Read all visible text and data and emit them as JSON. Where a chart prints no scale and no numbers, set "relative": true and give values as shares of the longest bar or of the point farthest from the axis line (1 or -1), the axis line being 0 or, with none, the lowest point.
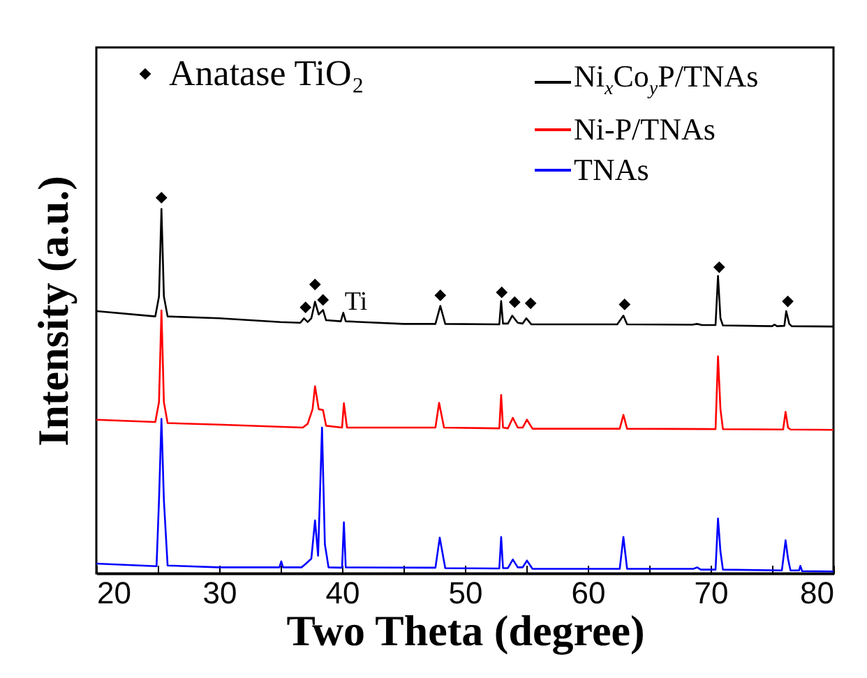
{
  "chart_data": {
    "type": "line",
    "xlabel": "Two Theta (degree)",
    "ylabel": "Intensity (a.u.)",
    "relative": true,
    "legend": "top right",
    "xlim": [
      20,
      80
    ],
    "xticks": [
      20,
      {
        "value": 25,
        "label": null
      },
      30,
      {
        "value": 35,
        "label": null
      },
      40,
      {
        "value": 45,
        "label": null
      },
      50,
      {
        "value": 55,
        "label": null
      },
      60,
      {
        "value": 65,
        "label": null
      },
      70,
      {
        "value": 75,
        "label": null
      },
      80
    ],
    "annotations": [
      {
        "text": "Ti",
        "x": 40.1,
        "y": 0.694
      }
    ],
    "series": [
      {
        "name": "Ni$_{x}$Co$_{y}$P/TNAs",
        "color": "#000000",
        "x": [
          20,
          24.8,
          25.1,
          25.3,
          25.5,
          25.8,
          30,
          35,
          36.6,
          36.9,
          37.2,
          37.5,
          37.8,
          38.1,
          38.45,
          38.7,
          39.9,
          40.1,
          40.3,
          45,
          47.6,
          48,
          48.4,
          52.8,
          52.95,
          53.1,
          53.5,
          53.85,
          54.3,
          54.7,
          55,
          55.4,
          62.4,
          62.9,
          63.2,
          68.5,
          68.9,
          69.3,
          70.4,
          70.6,
          70.8,
          71,
          75,
          75.2,
          75.4,
          76,
          76.15,
          76.4,
          76.6,
          80
        ],
        "values": [
          0.698,
          0.684,
          0.737,
          0.97,
          0.737,
          0.684,
          0.679,
          0.669,
          0.667,
          0.679,
          0.669,
          0.679,
          0.723,
          0.689,
          0.701,
          0.674,
          0.671,
          0.694,
          0.671,
          0.664,
          0.664,
          0.712,
          0.664,
          0.663,
          0.725,
          0.665,
          0.665,
          0.686,
          0.667,
          0.665,
          0.679,
          0.663,
          0.663,
          0.686,
          0.663,
          0.662,
          0.664,
          0.661,
          0.661,
          0.792,
          0.679,
          0.66,
          0.658,
          0.662,
          0.658,
          0.659,
          0.698,
          0.664,
          0.658,
          0.657
        ]
      },
      {
        "name": "Ni-P/TNAs",
        "color": "#ff0000",
        "x": [
          20,
          24.8,
          25.1,
          25.3,
          25.5,
          25.8,
          30,
          36.8,
          37.2,
          37.6,
          37.8,
          38.1,
          38.45,
          38.7,
          40,
          40.15,
          40.4,
          47.6,
          47.9,
          48.3,
          52.8,
          52.95,
          53.1,
          53.5,
          53.9,
          54.3,
          54.7,
          55.05,
          55.5,
          62.6,
          62.9,
          63.2,
          70.4,
          70.6,
          70.8,
          71,
          75.9,
          76.1,
          76.3,
          76.5,
          80
        ],
        "values": [
          0.409,
          0.403,
          0.456,
          0.7,
          0.456,
          0.4,
          0.396,
          0.388,
          0.398,
          0.437,
          0.498,
          0.437,
          0.435,
          0.393,
          0.388,
          0.453,
          0.388,
          0.388,
          0.454,
          0.388,
          0.386,
          0.475,
          0.388,
          0.386,
          0.414,
          0.388,
          0.388,
          0.409,
          0.385,
          0.385,
          0.422,
          0.385,
          0.384,
          0.578,
          0.437,
          0.384,
          0.383,
          0.43,
          0.388,
          0.383,
          0.382
        ]
      },
      {
        "name": "TNAs",
        "color": "#0000ff",
        "x": [
          20,
          24.9,
          25.1,
          25.3,
          25.5,
          25.8,
          30,
          34.9,
          35.05,
          35.2,
          36.7,
          37,
          37.5,
          37.8,
          38.05,
          38.37,
          38.6,
          38.9,
          40,
          40.15,
          40.3,
          47.6,
          47.95,
          48.4,
          52.8,
          52.95,
          53.1,
          53.5,
          53.9,
          54.3,
          54.7,
          55.05,
          55.5,
          62.6,
          62.9,
          63.2,
          68.6,
          68.9,
          69.2,
          70.4,
          70.6,
          70.8,
          71,
          75.8,
          76.1,
          76.3,
          76.5,
          77.2,
          77.3,
          77.45,
          80
        ],
        "values": [
          0.026,
          0.019,
          0.194,
          0.411,
          0.194,
          0.021,
          0.016,
          0.016,
          0.032,
          0.016,
          0.016,
          0.024,
          0.039,
          0.141,
          0.047,
          0.388,
          0.078,
          0.016,
          0.015,
          0.136,
          0.016,
          0.015,
          0.095,
          0.014,
          0.013,
          0.097,
          0.014,
          0.014,
          0.037,
          0.016,
          0.016,
          0.034,
          0.012,
          0.012,
          0.097,
          0.012,
          0.012,
          0.016,
          0.01,
          0.01,
          0.146,
          0.058,
          0.01,
          0.008,
          0.088,
          0.039,
          0.008,
          0.008,
          0.02,
          0.006,
          0.005
        ]
      },
      {
        "name": "Anatase TiO₂",
        "color": "#000000",
        "type": "scatter",
        "marker": "diamond",
        "x": [
          25.3,
          37.03,
          37.8,
          38.45,
          48.0,
          53.0,
          54.05,
          55.35,
          63.0,
          70.7,
          76.28
        ],
        "values": [
          1.0,
          0.708,
          0.769,
          0.728,
          0.74,
          0.748,
          0.722,
          0.719,
          0.716,
          0.815,
          0.724
        ]
      }
    ]
  }
}
